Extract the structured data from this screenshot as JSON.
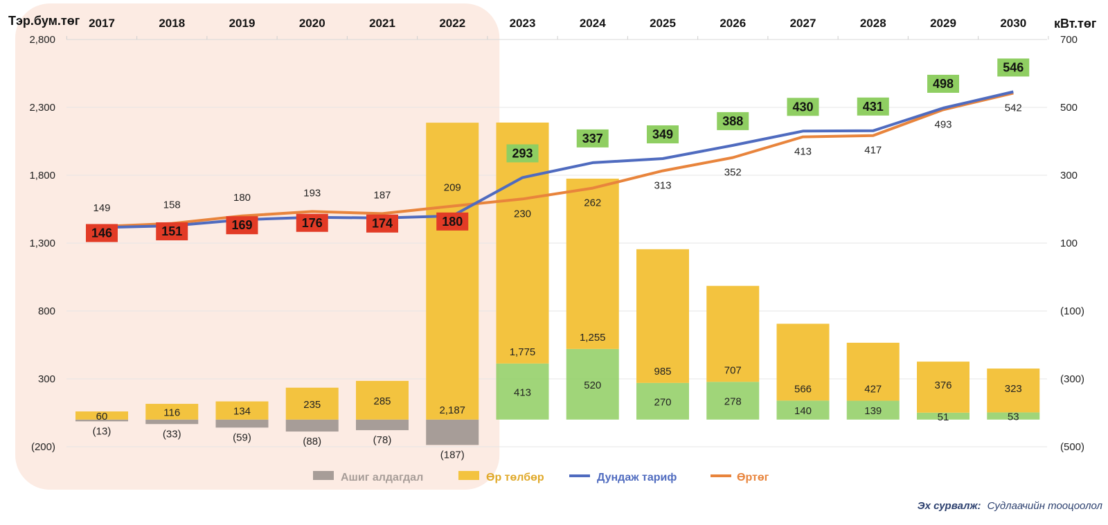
{
  "chart_data": {
    "type": "bar+line",
    "categories": [
      "2017",
      "2018",
      "2019",
      "2020",
      "2021",
      "2022",
      "2023",
      "2024",
      "2025",
      "2026",
      "2027",
      "2028",
      "2029",
      "2030"
    ],
    "y_left_label": "Тэр.бум.төг",
    "y_right_label": "кВт.төг",
    "y_left_ticks": [
      "2,800",
      "2,300",
      "1,800",
      "1,300",
      "800",
      "300",
      "(200)"
    ],
    "y_right_ticks": [
      "700",
      "500",
      "300",
      "100",
      "(100)",
      "(300)",
      "(500)"
    ],
    "ylim_left": [
      -200,
      2800
    ],
    "ylim_right": [
      -500,
      700
    ],
    "highlight_range": [
      "2017",
      "2022"
    ],
    "series": [
      {
        "name": "Ашиг алдагдал",
        "type": "bar",
        "axis": "left",
        "color": "#a79d98",
        "values": [
          -13,
          -33,
          -59,
          -88,
          -78,
          -187,
          413,
          520,
          270,
          278,
          140,
          139,
          51,
          53
        ],
        "labels": [
          "(13)",
          "(33)",
          "(59)",
          "(88)",
          "(78)",
          "(187)",
          "413",
          "520",
          "270",
          "278",
          "140",
          "139",
          "51",
          "53"
        ]
      },
      {
        "name": "Өр төлбөр",
        "type": "bar",
        "axis": "left",
        "color": "#f3c33f",
        "values": [
          60,
          116,
          134,
          235,
          285,
          2187,
          1775,
          1255,
          985,
          707,
          566,
          427,
          376,
          323
        ],
        "labels": [
          "60",
          "116",
          "134",
          "235",
          "285",
          "2,187",
          "1,775",
          "1,255",
          "985",
          "707",
          "566",
          "427",
          "376",
          "323"
        ]
      },
      {
        "name": "Дундаж тариф",
        "type": "line",
        "axis": "right",
        "color": "#4f6bbf",
        "values": [
          146,
          151,
          169,
          176,
          174,
          180,
          293,
          337,
          349,
          388,
          430,
          431,
          498,
          546
        ],
        "labels": [
          "146",
          "151",
          "169",
          "176",
          "174",
          "180",
          "293",
          "337",
          "349",
          "388",
          "430",
          "431",
          "498",
          "546"
        ]
      },
      {
        "name": "Өртөг",
        "type": "line",
        "axis": "right",
        "color": "#e8843c",
        "values": [
          149,
          158,
          180,
          193,
          187,
          209,
          230,
          262,
          313,
          352,
          413,
          417,
          493,
          542
        ],
        "labels": [
          "149",
          "158",
          "180",
          "193",
          "187",
          "209",
          "230",
          "262",
          "313",
          "352",
          "413",
          "417",
          "493",
          "542"
        ]
      }
    ],
    "badge_colors": {
      "loss": "#e23b26",
      "profit": "#8fce62"
    },
    "legend_position": "bottom",
    "legend": [
      "Ашиг алдагдал",
      "Өр төлбөр",
      "Дундаж тариф",
      "Өртөг"
    ]
  },
  "source": {
    "prefix": "Эх сурвалж:",
    "text": "Судлаачийн тооцоолол"
  }
}
